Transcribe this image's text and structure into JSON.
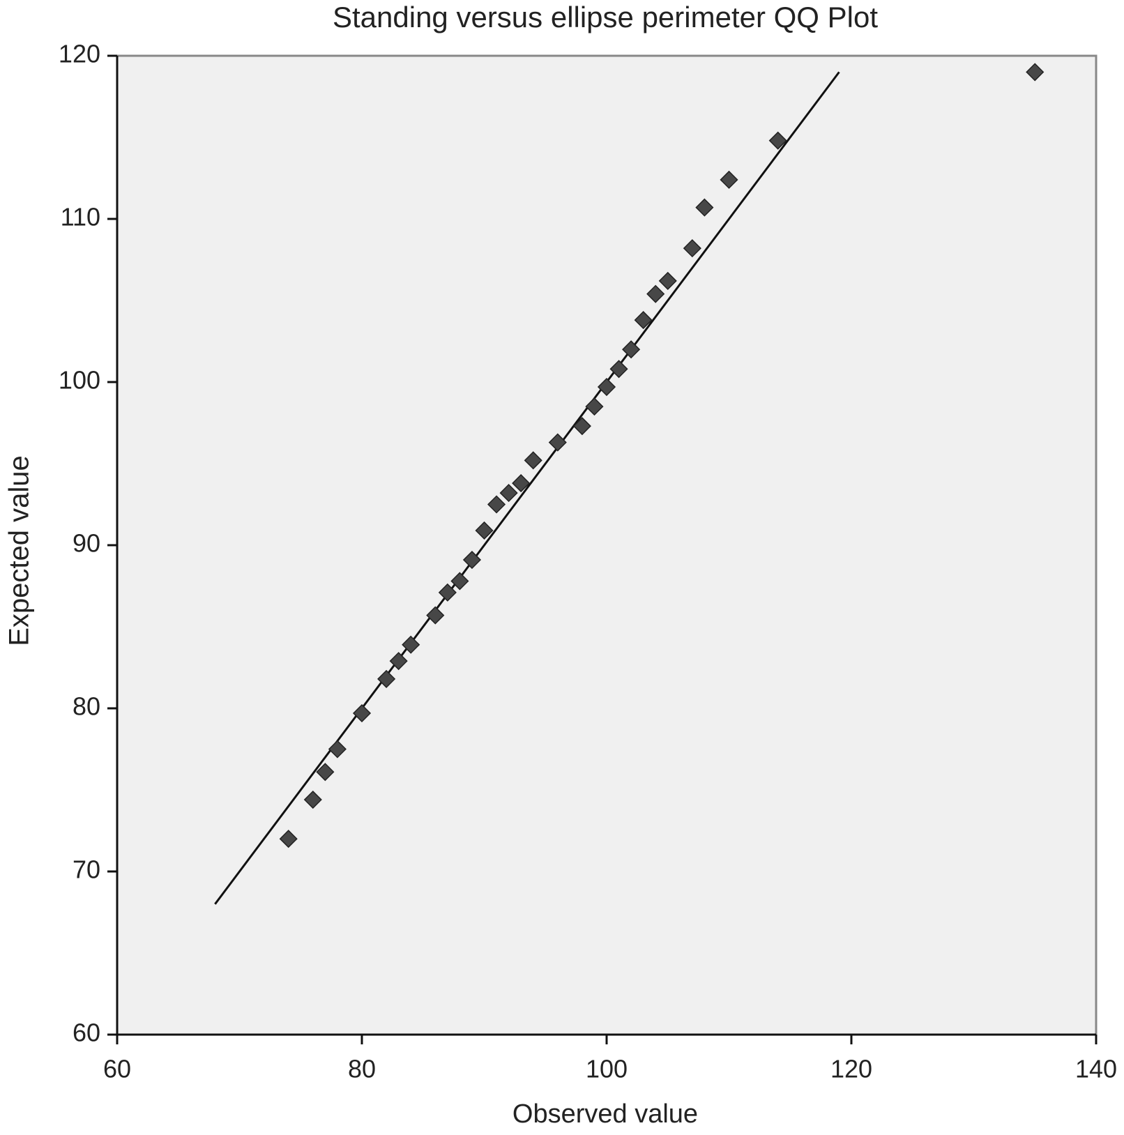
{
  "chart_data": {
    "type": "scatter",
    "title": "Standing versus ellipse perimeter QQ Plot",
    "x_label": "Observed value",
    "y_label": "Expected value",
    "x": [
      74,
      76,
      77,
      78,
      80,
      82,
      83,
      84,
      86,
      87,
      88,
      89,
      90,
      91,
      92,
      93,
      94,
      96,
      98,
      99,
      100,
      101,
      102,
      103,
      104,
      105,
      107,
      108,
      110,
      114,
      135
    ],
    "series": [
      {
        "color": "#474747",
        "values": [
          72.0,
          74.4,
          76.1,
          77.5,
          79.7,
          81.8,
          82.9,
          83.9,
          85.7,
          87.1,
          87.8,
          89.1,
          90.9,
          92.5,
          93.2,
          93.8,
          95.2,
          96.3,
          97.3,
          98.5,
          99.7,
          100.8,
          102.0,
          103.8,
          105.4,
          106.2,
          108.2,
          110.7,
          112.4,
          114.8,
          119.0
        ]
      }
    ],
    "reference_line": {
      "x": [
        68,
        119
      ],
      "y": [
        68,
        119
      ],
      "color": "#111111"
    },
    "xlim": [
      60,
      140
    ],
    "xticks": [
      60,
      80,
      100,
      120,
      140
    ],
    "ylim": [
      60,
      120
    ],
    "yticks": [
      60,
      70,
      80,
      90,
      100,
      110,
      120
    ],
    "grid": false,
    "background": "#f0f0f0"
  }
}
